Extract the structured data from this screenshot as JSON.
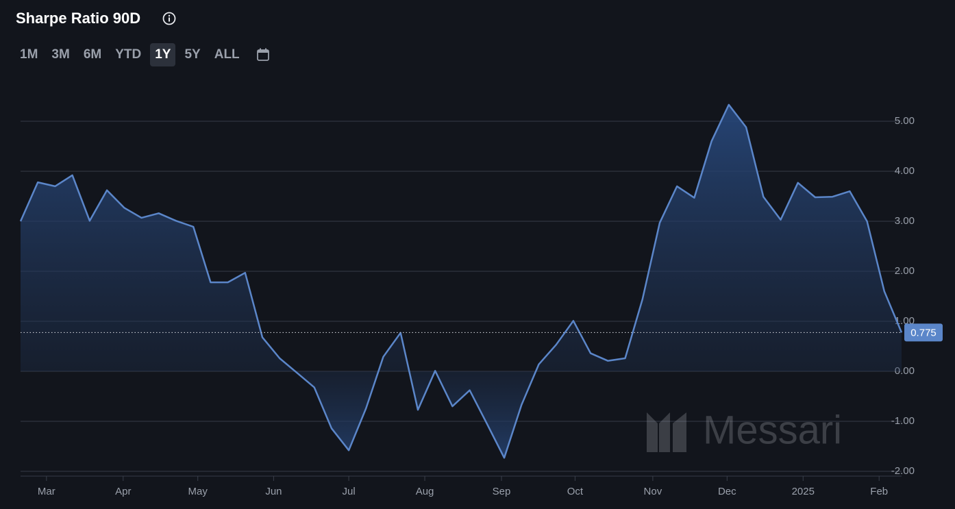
{
  "header": {
    "title": "Sharpe Ratio 90D"
  },
  "controls": {
    "ranges": [
      "1M",
      "3M",
      "6M",
      "YTD",
      "1Y",
      "5Y",
      "ALL"
    ],
    "selected": "1Y"
  },
  "chart_data": {
    "type": "area",
    "watermark": "Messari",
    "series": [
      {
        "name": "Sharpe Ratio 90D",
        "color": "#5b86c9",
        "values": [
          3.0,
          3.78,
          3.7,
          3.92,
          3.01,
          3.62,
          3.27,
          3.07,
          3.16,
          3.01,
          2.89,
          1.78,
          1.78,
          1.97,
          0.68,
          0.26,
          -0.03,
          -0.32,
          -1.14,
          -1.58,
          -0.74,
          0.29,
          0.77,
          -0.77,
          0.01,
          -0.7,
          -0.38,
          -1.05,
          -1.73,
          -0.67,
          0.14,
          0.53,
          1.01,
          0.36,
          0.21,
          0.26,
          1.44,
          2.97,
          3.7,
          3.47,
          4.6,
          5.33,
          4.88,
          3.49,
          3.03,
          3.77,
          3.48,
          3.49,
          3.6,
          3.0,
          1.6,
          0.775
        ]
      }
    ],
    "xlim": [
      0,
      51
    ],
    "xticks": [
      {
        "value": 1.5,
        "label": "Mar"
      },
      {
        "value": 5.94,
        "label": "Apr"
      },
      {
        "value": 10.26,
        "label": "May"
      },
      {
        "value": 14.65,
        "label": "Jun"
      },
      {
        "value": 19.0,
        "label": "Jul"
      },
      {
        "value": 23.4,
        "label": "Aug"
      },
      {
        "value": 27.84,
        "label": "Sep"
      },
      {
        "value": 32.1,
        "label": "Oct"
      },
      {
        "value": 36.6,
        "label": "Nov"
      },
      {
        "value": 40.9,
        "label": "Dec"
      },
      {
        "value": 45.3,
        "label": "2025"
      },
      {
        "value": 49.7,
        "label": "Feb"
      }
    ],
    "ylim": [
      -2,
      5
    ],
    "yticks": [
      {
        "value": -2,
        "label": "-2.00"
      },
      {
        "value": -1,
        "label": "-1.00"
      },
      {
        "value": 0,
        "label": "0.00"
      },
      {
        "value": 1,
        "label": "1.00"
      },
      {
        "value": 2,
        "label": "2.00"
      },
      {
        "value": 3,
        "label": "3.00"
      },
      {
        "value": 4,
        "label": "4.00"
      },
      {
        "value": 5,
        "label": "5.00"
      }
    ],
    "grid": true
  }
}
